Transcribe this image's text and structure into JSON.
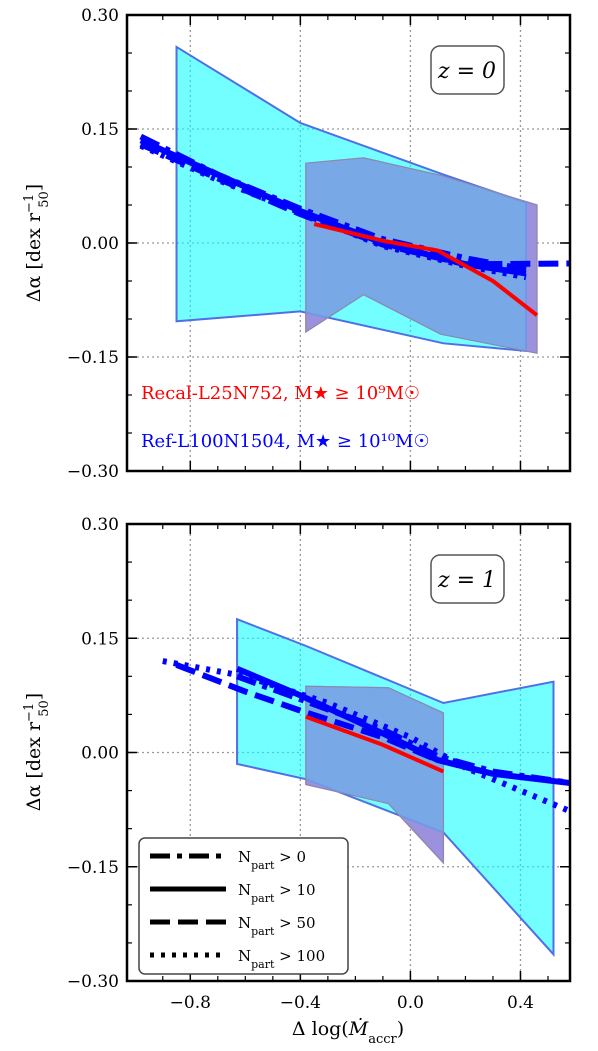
{
  "xlabel": "Δ log(Ṁaccr)",
  "xlabel_parts": {
    "pre": "Δ log(",
    "sym": "Ṁ",
    "sub": "accr",
    "post": ")"
  },
  "ylabel_parts": {
    "pre": "Δα [dex r",
    "sub": "50",
    "sup": "−1",
    "post": "]"
  },
  "xticks": [
    "−0.8",
    "−0.4",
    "0.0",
    "0.4"
  ],
  "yticks": [
    "−0.30",
    "−0.15",
    "0.00",
    "0.15",
    "0.30"
  ],
  "sample_labels": [
    {
      "text": "Recal-L25N752, M★ ≥ 10⁹M☉",
      "color": "#ff0000"
    },
    {
      "text": "Ref-L100N1504, M★ ≥ 10¹⁰M☉",
      "color": "#0000ff"
    }
  ],
  "legend": [
    {
      "label": "Npart > 0",
      "main": "N",
      "sub": "part",
      "rest": " > 0",
      "style": "dashdot"
    },
    {
      "label": "Npart > 10",
      "main": "N",
      "sub": "part",
      "rest": " > 10",
      "style": "solid"
    },
    {
      "label": "Npart > 50",
      "main": "N",
      "sub": "part",
      "rest": " > 50",
      "style": "dashed"
    },
    {
      "label": "Npart > 100",
      "main": "N",
      "sub": "part",
      "rest": " > 100",
      "style": "dotted"
    }
  ],
  "colors": {
    "ref_fill": "#00ffff",
    "ref_edge": "#4f6fe6",
    "recal_fill": "#ff40b4",
    "overlap_fill": "#7aa6e8",
    "ref_line": "#0000ff",
    "recal_line": "#ff0000"
  },
  "chart_data": [
    {
      "type": "line",
      "title": "z = 0",
      "xlabel": "",
      "ylabel": "Δα [dex r50⁻¹]",
      "xlim": [
        -1.03,
        0.58
      ],
      "ylim": [
        -0.3,
        0.3
      ],
      "grid": true,
      "bands": [
        {
          "name": "Ref-L100N1504",
          "x": [
            -0.85,
            -0.4,
            0.12,
            0.42
          ],
          "upper": [
            0.258,
            0.158,
            0.09,
            0.053
          ],
          "lower": [
            -0.103,
            -0.09,
            -0.132,
            -0.142
          ]
        },
        {
          "name": "Recal-L25N752",
          "x": [
            -0.38,
            -0.17,
            0.11,
            0.46
          ],
          "upper": [
            0.105,
            0.112,
            0.089,
            0.05
          ],
          "lower": [
            -0.117,
            -0.068,
            -0.12,
            -0.145
          ]
        }
      ],
      "series": [
        {
          "name": "Ref-L100N1504 Npart > 0",
          "style": "dashdot",
          "x": [
            -0.98,
            -0.7,
            -0.4,
            -0.1,
            0.2,
            0.42
          ],
          "y": [
            0.14,
            0.09,
            0.045,
            0.005,
            -0.02,
            -0.035
          ]
        },
        {
          "name": "Ref-L100N1504 Npart > 10",
          "style": "solid",
          "x": [
            -0.98,
            -0.7,
            -0.4,
            -0.1,
            0.2,
            0.42
          ],
          "y": [
            0.135,
            0.09,
            0.042,
            0.0,
            -0.028,
            -0.04
          ]
        },
        {
          "name": "Ref-L100N1504 Npart > 50",
          "style": "dashed",
          "x": [
            -0.98,
            -0.7,
            -0.4,
            -0.1,
            0.2,
            0.58
          ],
          "y": [
            0.13,
            0.085,
            0.038,
            -0.002,
            -0.028,
            -0.027
          ]
        },
        {
          "name": "Ref-L100N1504 Npart > 100",
          "style": "dotted",
          "x": [
            -0.98,
            -0.7,
            -0.4,
            -0.1,
            0.2,
            0.42
          ],
          "y": [
            0.128,
            0.083,
            0.04,
            -0.004,
            -0.03,
            -0.045
          ]
        },
        {
          "name": "Recal-L25N752 Npart > 10",
          "style": "solid",
          "x": [
            -0.35,
            -0.1,
            0.1,
            0.3,
            0.46
          ],
          "y": [
            0.025,
            0.003,
            -0.01,
            -0.05,
            -0.095
          ]
        }
      ]
    },
    {
      "type": "line",
      "title": "z = 1",
      "xlabel": "Δ log(Ṁaccr)",
      "ylabel": "Δα [dex r50⁻¹]",
      "xlim": [
        -1.03,
        0.58
      ],
      "ylim": [
        -0.3,
        0.3
      ],
      "grid": true,
      "bands": [
        {
          "name": "Ref-L100N1504",
          "x": [
            -0.63,
            -0.38,
            0.12,
            0.52
          ],
          "upper": [
            0.175,
            0.14,
            0.065,
            0.093
          ],
          "lower": [
            -0.015,
            -0.035,
            -0.105,
            -0.265
          ]
        },
        {
          "name": "Recal-L25N752",
          "x": [
            -0.38,
            -0.08,
            0.12
          ],
          "upper": [
            0.087,
            0.085,
            0.052
          ],
          "lower": [
            -0.042,
            -0.067,
            -0.145
          ]
        }
      ],
      "series": [
        {
          "name": "Ref-L100N1504 Npart > 0",
          "style": "dashdot",
          "x": [
            -0.63,
            -0.4,
            -0.1,
            0.1,
            0.3,
            0.58
          ],
          "y": [
            0.1,
            0.07,
            0.03,
            -0.005,
            -0.025,
            -0.04
          ]
        },
        {
          "name": "Ref-L100N1504 Npart > 10",
          "style": "solid",
          "x": [
            -0.63,
            -0.4,
            -0.1,
            0.1,
            0.3,
            0.58
          ],
          "y": [
            0.11,
            0.075,
            0.025,
            -0.01,
            -0.028,
            -0.04
          ]
        },
        {
          "name": "Ref-L100N1504 Npart > 50",
          "style": "dashed",
          "x": [
            -0.85,
            -0.6,
            -0.4,
            -0.1,
            0.1,
            0.3
          ],
          "y": [
            0.115,
            0.08,
            0.055,
            0.02,
            -0.01,
            -0.028
          ]
        },
        {
          "name": "Ref-L100N1504 Npart > 100",
          "style": "dotted",
          "x": [
            -0.9,
            -0.6,
            -0.3,
            0.0,
            0.2,
            0.4,
            0.58
          ],
          "y": [
            0.12,
            0.1,
            0.065,
            0.02,
            -0.02,
            -0.05,
            -0.077
          ]
        },
        {
          "name": "Recal-L25N752 Npart > 10",
          "style": "solid",
          "x": [
            -0.38,
            -0.1,
            0.12
          ],
          "y": [
            0.047,
            0.01,
            -0.025
          ]
        }
      ]
    }
  ]
}
